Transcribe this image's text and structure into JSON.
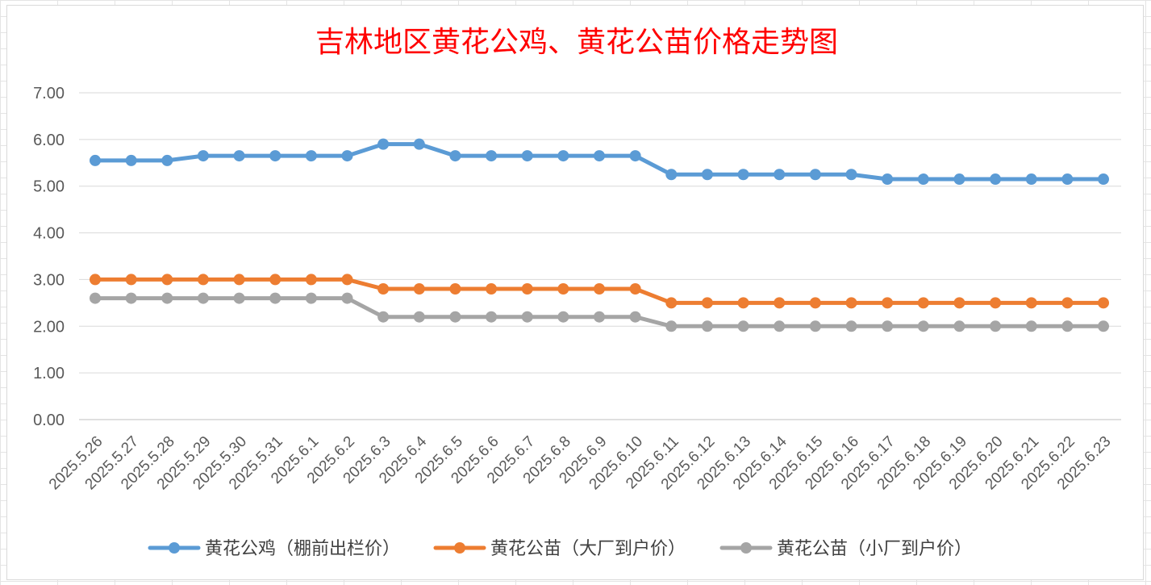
{
  "chart_data": {
    "type": "line",
    "title": "吉林地区黄花公鸡、黄花公苗价格走势图",
    "xlabel": "",
    "ylabel": "",
    "ylim": [
      0,
      7
    ],
    "y_ticks": [
      "0.00",
      "1.00",
      "2.00",
      "3.00",
      "4.00",
      "5.00",
      "6.00",
      "7.00"
    ],
    "grid": "horizontal",
    "legend_position": "bottom",
    "categories": [
      "2025.5.26",
      "2025.5.27",
      "2025.5.28",
      "2025.5.29",
      "2025.5.30",
      "2025.5.31",
      "2025.6.1",
      "2025.6.2",
      "2025.6.3",
      "2025.6.4",
      "2025.6.5",
      "2025.6.6",
      "2025.6.7",
      "2025.6.8",
      "2025.6.9",
      "2025.6.10",
      "2025.6.11",
      "2025.6.12",
      "2025.6.13",
      "2025.6.14",
      "2025.6.15",
      "2025.6.16",
      "2025.6.17",
      "2025.6.18",
      "2025.6.19",
      "2025.6.20",
      "2025.6.21",
      "2025.6.22",
      "2025.6.23"
    ],
    "series": [
      {
        "name": "黄花公鸡（棚前出栏价）",
        "color": "#5b9bd5",
        "values": [
          5.55,
          5.55,
          5.55,
          5.65,
          5.65,
          5.65,
          5.65,
          5.65,
          5.9,
          5.9,
          5.65,
          5.65,
          5.65,
          5.65,
          5.65,
          5.65,
          5.25,
          5.25,
          5.25,
          5.25,
          5.25,
          5.25,
          5.15,
          5.15,
          5.15,
          5.15,
          5.15,
          5.15,
          5.15
        ]
      },
      {
        "name": "黄花公苗（大厂到户价）",
        "color": "#ed7d31",
        "values": [
          3.0,
          3.0,
          3.0,
          3.0,
          3.0,
          3.0,
          3.0,
          3.0,
          2.8,
          2.8,
          2.8,
          2.8,
          2.8,
          2.8,
          2.8,
          2.8,
          2.5,
          2.5,
          2.5,
          2.5,
          2.5,
          2.5,
          2.5,
          2.5,
          2.5,
          2.5,
          2.5,
          2.5,
          2.5
        ]
      },
      {
        "name": "黄花公苗（小厂到户价）",
        "color": "#a5a5a5",
        "values": [
          2.6,
          2.6,
          2.6,
          2.6,
          2.6,
          2.6,
          2.6,
          2.6,
          2.2,
          2.2,
          2.2,
          2.2,
          2.2,
          2.2,
          2.2,
          2.2,
          2.0,
          2.0,
          2.0,
          2.0,
          2.0,
          2.0,
          2.0,
          2.0,
          2.0,
          2.0,
          2.0,
          2.0,
          2.0
        ]
      }
    ]
  }
}
